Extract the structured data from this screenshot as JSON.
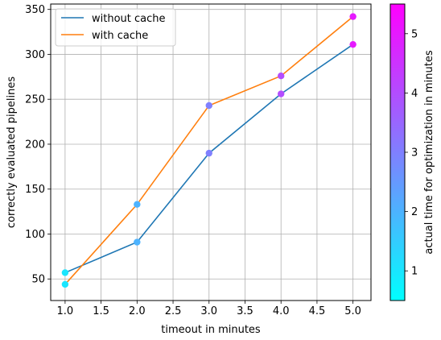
{
  "chart_data": {
    "type": "line",
    "xlabel": "timeout in minutes",
    "ylabel": "correctly evaluated pipelines",
    "xlim": [
      0.8,
      5.25
    ],
    "ylim": [
      26,
      356
    ],
    "x_ticks": [
      "1.0",
      "1.5",
      "2.0",
      "2.5",
      "3.0",
      "3.5",
      "4.0",
      "4.5",
      "5.0"
    ],
    "x_tick_values": [
      1.0,
      1.5,
      2.0,
      2.5,
      3.0,
      3.5,
      4.0,
      4.5,
      5.0
    ],
    "y_ticks": [
      "50",
      "100",
      "150",
      "200",
      "250",
      "300",
      "350"
    ],
    "y_tick_values": [
      50,
      100,
      150,
      200,
      250,
      300,
      350
    ],
    "grid": true,
    "legend_position": "top-left",
    "series": [
      {
        "name": "without cache",
        "color": "#1f77b4",
        "x": [
          1.0,
          2.0,
          3.0,
          4.0,
          5.0
        ],
        "y": [
          57,
          91,
          190,
          256,
          311
        ],
        "marker_time": [
          1.0,
          2.0,
          3.0,
          4.0,
          5.0
        ]
      },
      {
        "name": "with cache",
        "color": "#ff7f0e",
        "x": [
          1.0,
          2.0,
          3.0,
          4.0,
          5.0
        ],
        "y": [
          44,
          133,
          243,
          276,
          342
        ],
        "marker_time": [
          1.0,
          2.0,
          3.0,
          4.0,
          5.0
        ]
      }
    ],
    "colorbar": {
      "label": "actual time for optimization in minutes",
      "colormap": "cool",
      "color_min": "#00ffff",
      "color_max": "#ff00ff",
      "range": [
        0.5,
        5.5
      ],
      "ticks": [
        "1",
        "2",
        "3",
        "4",
        "5"
      ],
      "tick_values": [
        1,
        2,
        3,
        4,
        5
      ]
    }
  }
}
